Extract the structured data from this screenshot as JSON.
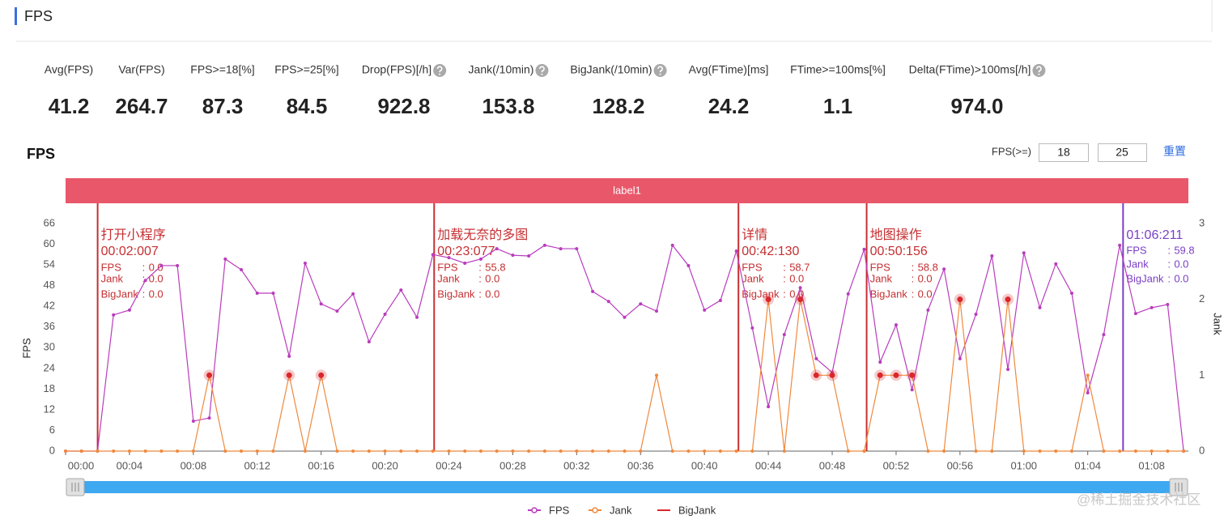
{
  "header": {
    "title": "FPS"
  },
  "stats": [
    {
      "label": "Avg(FPS)",
      "value": "41.2",
      "help": false
    },
    {
      "label": "Var(FPS)",
      "value": "264.7",
      "help": false
    },
    {
      "label": "FPS>=18[%]",
      "value": "87.3",
      "help": false
    },
    {
      "label": "FPS>=25[%]",
      "value": "84.5",
      "help": false
    },
    {
      "label": "Drop(FPS)[/h]",
      "value": "922.8",
      "help": true
    },
    {
      "label": "Jank(/10min)",
      "value": "153.8",
      "help": true
    },
    {
      "label": "BigJank(/10min)",
      "value": "128.2",
      "help": true
    },
    {
      "label": "Avg(FTime)[ms]",
      "value": "24.2",
      "help": false
    },
    {
      "label": "FTime>=100ms[%]",
      "value": "1.1",
      "help": false
    },
    {
      "label": "Delta(FTime)>100ms[/h]",
      "value": "974.0",
      "help": true
    }
  ],
  "controls": {
    "threshold_label": "FPS(>=)",
    "thresholds": [
      "18",
      "25"
    ],
    "reset": "重置"
  },
  "watermark": "@稀土掘金技术社区",
  "chart_data": {
    "type": "line",
    "title": "FPS",
    "band_label": "label1",
    "band_color": "#e9576a",
    "y_label": "FPS",
    "y2_label": "Jank",
    "x": [
      0,
      1,
      2,
      3,
      4,
      5,
      6,
      7,
      8,
      9,
      10,
      11,
      12,
      13,
      14,
      15,
      16,
      17,
      18,
      19,
      20,
      21,
      22,
      23,
      24,
      25,
      26,
      27,
      28,
      29,
      30,
      31,
      32,
      33,
      34,
      35,
      36,
      37,
      38,
      39,
      40,
      41,
      42,
      43,
      44,
      45,
      46,
      47,
      48,
      49,
      50,
      51,
      52,
      53,
      54,
      55,
      56,
      57,
      58,
      59,
      60,
      61,
      62,
      63,
      64,
      65,
      66,
      67,
      68,
      69,
      70
    ],
    "xlim": [
      0,
      70.3
    ],
    "xticks": [
      {
        "value": 0,
        "label": "00:00"
      },
      {
        "value": 4,
        "label": "00:04"
      },
      {
        "value": 8,
        "label": "00:08"
      },
      {
        "value": 12,
        "label": "00:12"
      },
      {
        "value": 16,
        "label": "00:16"
      },
      {
        "value": 20,
        "label": "00:20"
      },
      {
        "value": 24,
        "label": "00:24"
      },
      {
        "value": 28,
        "label": "00:28"
      },
      {
        "value": 32,
        "label": "00:32"
      },
      {
        "value": 36,
        "label": "00:36"
      },
      {
        "value": 40,
        "label": "00:40"
      },
      {
        "value": 44,
        "label": "00:44"
      },
      {
        "value": 48,
        "label": "00:48"
      },
      {
        "value": 52,
        "label": "00:52"
      },
      {
        "value": 56,
        "label": "00:56"
      },
      {
        "value": 60,
        "label": "01:00"
      },
      {
        "value": 64,
        "label": "01:04"
      },
      {
        "value": 68,
        "label": "01:08"
      }
    ],
    "ylim": [
      0,
      66
    ],
    "yticks": [
      0,
      6,
      12,
      18,
      24,
      30,
      36,
      42,
      48,
      54,
      60,
      66
    ],
    "y2lim": [
      0,
      3
    ],
    "y2ticks": [
      0,
      1,
      2,
      3
    ],
    "grid": false,
    "series": [
      {
        "name": "FPS",
        "color": "#b93cbd",
        "type": "line",
        "values": [
          0,
          0,
          0,
          39.5,
          40.9,
          49.5,
          53.8,
          53.8,
          8.7,
          9.6,
          55.7,
          52.6,
          45.8,
          45.8,
          27.5,
          54.5,
          42.7,
          40.6,
          45.6,
          31.7,
          39.7,
          46.7,
          38.8,
          57,
          56.1,
          54.5,
          55.7,
          58.7,
          56.8,
          56.6,
          59.7,
          58.7,
          58.7,
          46.3,
          43.4,
          38.8,
          42.7,
          40.6,
          59.7,
          53.8,
          40.9,
          43.7,
          58,
          35.7,
          12.9,
          33.8,
          47.4,
          26.8,
          22.8,
          45.6,
          58.5,
          25.8,
          36.6,
          17.8,
          40.9,
          52.8,
          26.8,
          39.7,
          56.6,
          23.7,
          57.5,
          41.6,
          54.3,
          45.8,
          16.9,
          33.8,
          59.7,
          39.9,
          41.6,
          42.5,
          0
        ]
      },
      {
        "name": "Jank",
        "color": "#f0893c",
        "type": "line",
        "axis": "y2",
        "values": [
          0,
          0,
          0,
          0,
          0,
          0,
          0,
          0,
          0,
          1,
          0,
          0,
          0,
          0,
          1,
          0,
          1,
          0,
          0,
          0,
          0,
          0,
          0,
          0,
          0,
          0,
          0,
          0,
          0,
          0,
          0,
          0,
          0,
          0,
          0,
          0,
          0,
          1,
          0,
          0,
          0,
          0,
          0,
          0,
          2,
          0,
          2,
          1,
          1,
          0,
          0,
          1,
          1,
          1,
          0,
          0,
          2,
          0,
          0,
          2,
          0,
          0,
          0,
          0,
          1,
          0,
          0,
          0,
          0,
          0,
          0
        ]
      },
      {
        "name": "BigJank",
        "color": "#d9282b",
        "type": "scatter",
        "axis": "y2",
        "values": [
          null,
          null,
          null,
          null,
          null,
          null,
          null,
          null,
          null,
          1,
          null,
          null,
          null,
          null,
          1,
          null,
          1,
          null,
          null,
          null,
          null,
          null,
          null,
          null,
          null,
          null,
          null,
          null,
          null,
          null,
          null,
          null,
          null,
          null,
          null,
          null,
          null,
          null,
          null,
          null,
          null,
          null,
          null,
          null,
          2,
          null,
          2,
          1,
          1,
          null,
          null,
          1,
          1,
          1,
          null,
          null,
          2,
          null,
          null,
          2,
          null,
          null,
          null,
          null,
          null,
          null,
          null,
          null,
          null,
          null,
          null
        ]
      }
    ],
    "marker_fields": [
      "FPS",
      "Jank",
      "BigJank"
    ],
    "markers": [
      {
        "title": "打开小程序",
        "time": "00:02:007",
        "values": [
          "0.0",
          "0.0",
          "0.0"
        ],
        "color": "#c62f32"
      },
      {
        "title": "加载无奈的多图",
        "time": "00:23:077",
        "values": [
          "55.8",
          "0.0",
          "0.0"
        ],
        "color": "#c62f32"
      },
      {
        "title": "详情",
        "time": "00:42:130",
        "values": [
          "58.7",
          "0.0",
          "0.0"
        ],
        "color": "#c62f32"
      },
      {
        "title": "地图操作",
        "time": "00:50:156",
        "values": [
          "58.8",
          "0.0",
          "0.0"
        ],
        "color": "#c62f32"
      },
      {
        "time": "01:06:211",
        "values": [
          "59.8",
          "0.0",
          "0.0"
        ],
        "color": "#7a3fc6"
      }
    ]
  }
}
